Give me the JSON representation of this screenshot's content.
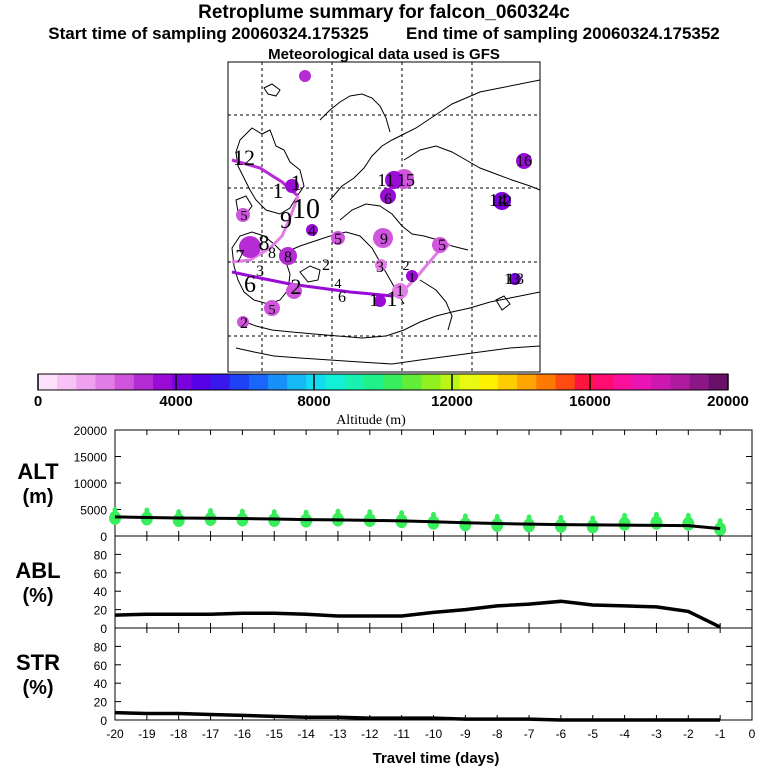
{
  "header": {
    "title": "Retroplume summary for falcon_060324c",
    "start_label": "Start time of sampling 20060324.175325",
    "end_label": "End time of sampling 20060324.175352",
    "met_label": "Meteorological data used is GFS"
  },
  "colorbar": {
    "label": "Altitude (m)",
    "min": 0,
    "max": 20000,
    "tick_labels": [
      "0",
      "4000",
      "8000",
      "12000",
      "16000",
      "20000"
    ],
    "colors": [
      "#fde0fb",
      "#f8c2f6",
      "#efa0ef",
      "#e27ce6",
      "#cf55dc",
      "#b52cd4",
      "#9a0bd6",
      "#7a00e0",
      "#5800e8",
      "#3818ee",
      "#2040f6",
      "#1a66fa",
      "#1890fa",
      "#16b8f6",
      "#14dcf0",
      "#12f0d8",
      "#18f2b0",
      "#20f088",
      "#38ee5c",
      "#62ee38",
      "#90f020",
      "#bcf416",
      "#e8fa12",
      "#fff000",
      "#ffcc00",
      "#ffa400",
      "#ff7a00",
      "#ff4a10",
      "#ff1440",
      "#ff0c70",
      "#f8109a",
      "#e814b4",
      "#cc18b0",
      "#ae1aa0",
      "#8c1888",
      "#6a1068"
    ]
  },
  "map": {
    "labels": [
      "7",
      "12",
      "1",
      "11",
      "10",
      "9",
      "8",
      "6",
      "5",
      "4",
      "3",
      "2",
      "14",
      "13",
      "16",
      "15"
    ],
    "markers": [
      {
        "label": "7",
        "color": "#b52cd4"
      },
      {
        "label": "1",
        "color": "#9a0bd6"
      },
      {
        "label": "2",
        "color": "#cf55dc"
      },
      {
        "label": "3",
        "color": "#e27ce6"
      },
      {
        "label": "4",
        "color": "#9a0bd6"
      },
      {
        "label": "5",
        "color": "#cf55dc"
      },
      {
        "label": "6",
        "color": "#9a0bd6"
      },
      {
        "label": "8",
        "color": "#b52cd4"
      },
      {
        "label": "9",
        "color": "#cf55dc"
      },
      {
        "label": "10",
        "color": "#9a0bd6"
      },
      {
        "label": "11",
        "color": "#e27ce6"
      },
      {
        "label": "12",
        "color": "#7a00e0"
      },
      {
        "label": "13",
        "color": "#7a00e0"
      },
      {
        "label": "16",
        "color": "#9a0bd6"
      }
    ]
  },
  "chart_data": [
    {
      "type": "scatter",
      "panel": "ALT",
      "ylabel_line1": "ALT",
      "ylabel_line2": "(m)",
      "ylim": [
        0,
        20000
      ],
      "yticks": [
        "0",
        "5000",
        "10000",
        "15000",
        "20000"
      ],
      "xlim": [
        -20,
        0
      ],
      "line_x": [
        -20,
        -19,
        -18,
        -17,
        -16,
        -15,
        -14,
        -13,
        -12,
        -11,
        -10,
        -9,
        -8,
        -7,
        -6,
        -5,
        -4,
        -3,
        -2,
        -1
      ],
      "line_y": [
        3600,
        3500,
        3400,
        3350,
        3300,
        3200,
        3100,
        3050,
        2950,
        2850,
        2700,
        2500,
        2350,
        2250,
        2150,
        2100,
        2050,
        2000,
        1950,
        1400
      ],
      "points": [
        {
          "x": -20,
          "y": 3400
        },
        {
          "x": -19,
          "y": 3300
        },
        {
          "x": -18,
          "y": 3000
        },
        {
          "x": -17,
          "y": 3200
        },
        {
          "x": -16,
          "y": 3100
        },
        {
          "x": -15,
          "y": 3000
        },
        {
          "x": -14,
          "y": 2900
        },
        {
          "x": -13,
          "y": 3100
        },
        {
          "x": -12,
          "y": 3000
        },
        {
          "x": -11,
          "y": 2800
        },
        {
          "x": -10,
          "y": 2500
        },
        {
          "x": -9,
          "y": 2200
        },
        {
          "x": -8,
          "y": 2100
        },
        {
          "x": -7,
          "y": 2000
        },
        {
          "x": -6,
          "y": 1900
        },
        {
          "x": -5,
          "y": 1800
        },
        {
          "x": -4,
          "y": 2300
        },
        {
          "x": -3,
          "y": 2500
        },
        {
          "x": -2,
          "y": 2300
        },
        {
          "x": -1,
          "y": 1300
        }
      ],
      "point_color": "#38ee5c",
      "line_color": "#000000"
    },
    {
      "type": "line",
      "panel": "ABL",
      "ylabel_line1": "ABL",
      "ylabel_line2": "(%)",
      "ylim": [
        0,
        100
      ],
      "yticks": [
        "0",
        "20",
        "40",
        "60",
        "80"
      ],
      "x": [
        -20,
        -19,
        -18,
        -17,
        -16,
        -15,
        -14,
        -13,
        -12,
        -11,
        -10,
        -9,
        -8,
        -7,
        -6,
        -5,
        -4,
        -3,
        -2,
        -1
      ],
      "y": [
        14,
        15,
        15,
        15,
        16,
        16,
        15,
        13,
        13,
        13,
        17,
        20,
        24,
        26,
        29,
        25,
        24,
        23,
        18,
        1
      ]
    },
    {
      "type": "line",
      "panel": "STR",
      "ylabel_line1": "STR",
      "ylabel_line2": "(%)",
      "ylim": [
        0,
        100
      ],
      "yticks": [
        "0",
        "20",
        "40",
        "60",
        "80"
      ],
      "x": [
        -20,
        -19,
        -18,
        -17,
        -16,
        -15,
        -14,
        -13,
        -12,
        -11,
        -10,
        -9,
        -8,
        -7,
        -6,
        -5,
        -4,
        -3,
        -2,
        -1
      ],
      "y": [
        8,
        7,
        7,
        6,
        5,
        4,
        3,
        3,
        2,
        2,
        2,
        1,
        1,
        1,
        0,
        0,
        0,
        0,
        0,
        0
      ],
      "xlabel": "Travel time (days)",
      "xtick_labels": [
        "-20",
        "-19",
        "-18",
        "-17",
        "-16",
        "-15",
        "-14",
        "-13",
        "-12",
        "-11",
        "-10",
        "-9",
        "-8",
        "-7",
        "-6",
        "-5",
        "-4",
        "-3",
        "-2",
        "-1",
        "0"
      ]
    }
  ]
}
